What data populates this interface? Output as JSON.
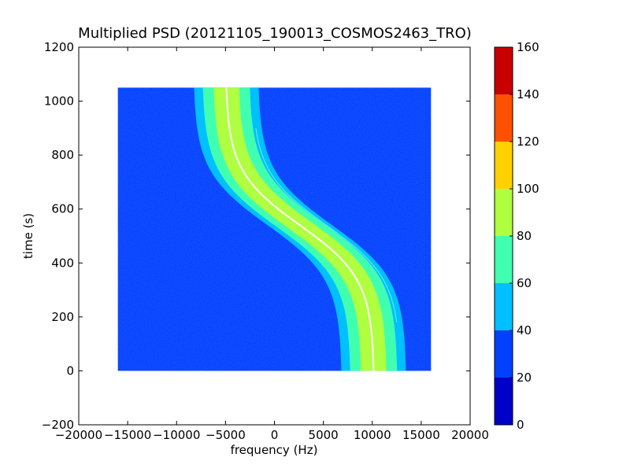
{
  "chart_data": {
    "type": "heatmap",
    "title": "Multiplied PSD (20121105_190013_COSMOS2463_TRO)",
    "xlabel": "frequency (Hz)",
    "ylabel": "time (s)",
    "xlim": [
      -20000,
      20000
    ],
    "ylim": [
      -200,
      1200
    ],
    "xticks": [
      -20000,
      -15000,
      -10000,
      -5000,
      0,
      5000,
      10000,
      15000,
      20000
    ],
    "xtick_labels": [
      "−20000",
      "−15000",
      "−10000",
      "−5000",
      "0",
      "5000",
      "10000",
      "15000",
      "20000"
    ],
    "yticks": [
      -200,
      0,
      200,
      400,
      600,
      800,
      1000,
      1200
    ],
    "ytick_labels": [
      "−200",
      "0",
      "200",
      "400",
      "600",
      "800",
      "1000",
      "1200"
    ],
    "data_extent": {
      "freq_min": -16000,
      "freq_max": 16000,
      "time_min": 0,
      "time_max": 1050
    },
    "doppler_curve": {
      "center_freq_t0": 10200,
      "center_freq_t1050": -5000,
      "inflection_time": 540,
      "inflection_freq": 2600
    },
    "colorbar": {
      "levels": [
        0,
        20,
        40,
        60,
        80,
        100,
        120,
        140,
        160
      ],
      "tick_labels": [
        "0",
        "20",
        "40",
        "60",
        "80",
        "100",
        "120",
        "140",
        "160"
      ],
      "colors": [
        "#0000c8",
        "#0040ff",
        "#00c0ff",
        "#40ffb0",
        "#b0ff40",
        "#ffd000",
        "#ff5000",
        "#c80000"
      ]
    },
    "background_color": "#0040ff",
    "grid": false
  }
}
